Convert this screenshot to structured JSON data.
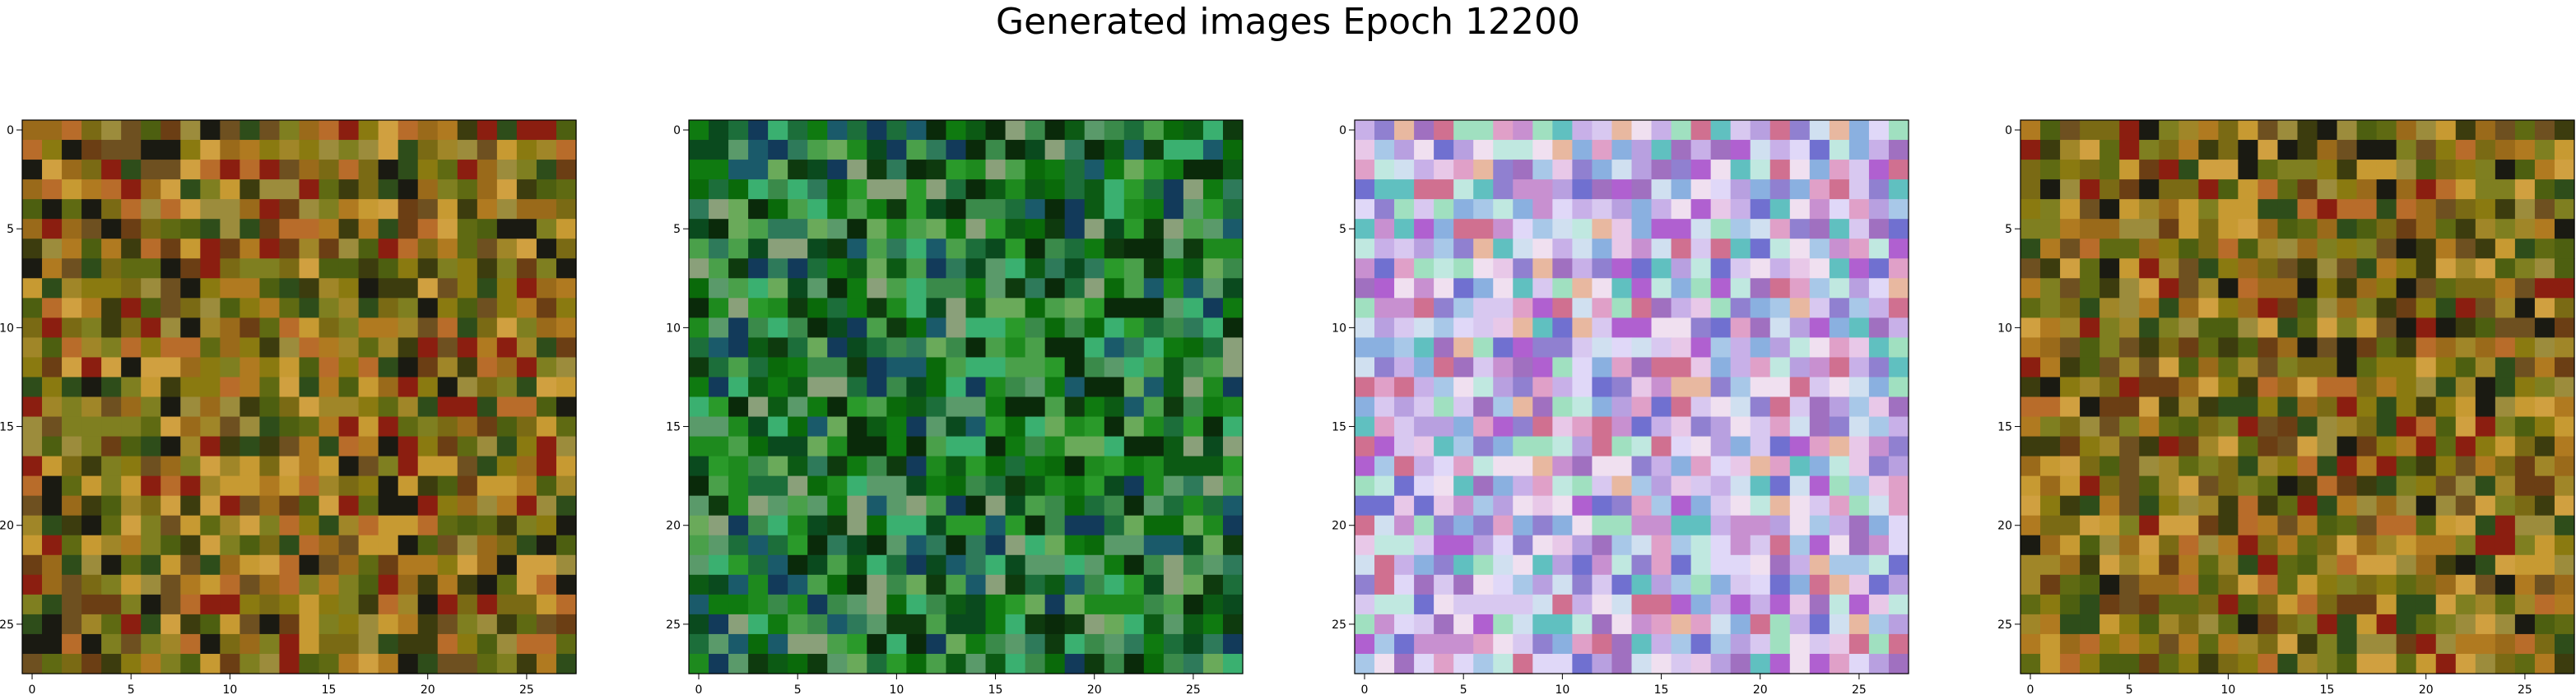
{
  "title": "Generated images Epoch 12200",
  "panels": [
    {
      "id": "img-1",
      "palette": "olive-orange",
      "seed": 11
    },
    {
      "id": "img-2",
      "palette": "green",
      "seed": 23
    },
    {
      "id": "img-3",
      "palette": "pastel-purple",
      "seed": 37
    },
    {
      "id": "img-4",
      "palette": "olive-orange",
      "seed": 53
    }
  ],
  "grid_size": 28,
  "x_ticks": [
    "0",
    "5",
    "10",
    "15",
    "20",
    "25"
  ],
  "y_ticks": [
    "0",
    "5",
    "10",
    "15",
    "20",
    "25"
  ],
  "palettes": {
    "olive-orange": [
      "#7a6a14",
      "#8a7a10",
      "#5f6a12",
      "#9a6a1a",
      "#b07a20",
      "#6b3e14",
      "#4d5f10",
      "#7f7f20",
      "#a08628",
      "#c79a32",
      "#3c3c0e",
      "#8b1e10",
      "#2e4d1a",
      "#9c8c3c",
      "#b86c2a",
      "#d0a040",
      "#1a1a12",
      "#6e5020"
    ],
    "green": [
      "#0a6a0a",
      "#0f7a10",
      "#1e8a1e",
      "#0c5a14",
      "#2a9a2a",
      "#3a8a4a",
      "#0a4a1e",
      "#1c6e3a",
      "#4aa04a",
      "#0e3a0e",
      "#2e7a5a",
      "#5a9a6a",
      "#0a2a0a",
      "#1a5a6a",
      "#6aaa5a",
      "#123a5a",
      "#8aa07a",
      "#3ab070"
    ],
    "pastel-purple": [
      "#d8c8f0",
      "#c8b0e8",
      "#e0d8f8",
      "#b8a0e0",
      "#a8c8e8",
      "#e8c8e8",
      "#c890d0",
      "#d0e0f0",
      "#9080d0",
      "#e0a0c8",
      "#c0e8e0",
      "#a070c0",
      "#f0e0f0",
      "#8ab0e0",
      "#d07090",
      "#60c0c0",
      "#e8b8a0",
      "#b060d0",
      "#7070d0",
      "#a0e0c0"
    ]
  }
}
